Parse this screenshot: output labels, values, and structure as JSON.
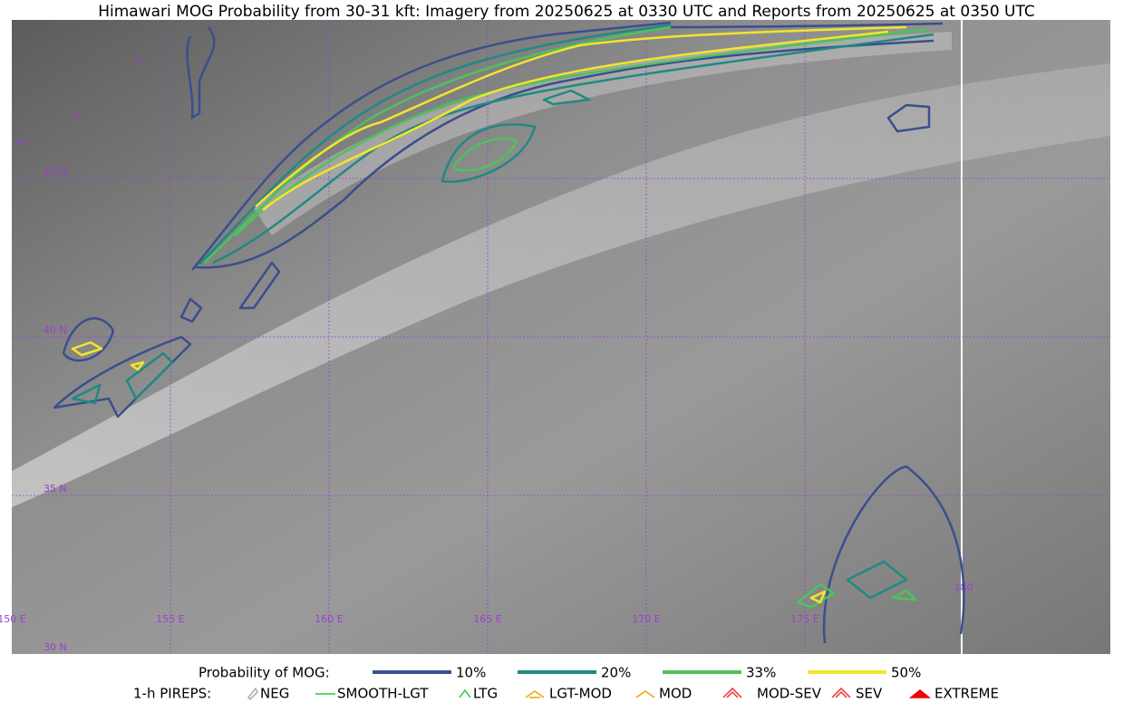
{
  "title": "Himawari MOG Probability from 30-31 kft: Imagery from 20250625 at 0330 UTC and Reports from 20250625 at 0350 UTC",
  "map": {
    "lat_labels": [
      "45 N",
      "40 N",
      "35 N",
      "30 N"
    ],
    "lon_labels": [
      "150 E",
      "155 E",
      "160 E",
      "165 E",
      "170 E",
      "175 E",
      "180"
    ]
  },
  "legend": {
    "probability": {
      "title": "Probability of MOG:",
      "items": [
        {
          "label": "10%",
          "color": "#3b4e8e"
        },
        {
          "label": "20%",
          "color": "#1f8a82"
        },
        {
          "label": "33%",
          "color": "#4dc25e"
        },
        {
          "label": "50%",
          "color": "#f3e52b"
        }
      ]
    },
    "pireps": {
      "title": "1-h PIREPS:",
      "items": [
        "NEG",
        "SMOOTH-LGT",
        "LTG",
        "LGT-MOD",
        "MOD",
        "MOD-SEV",
        "SEV",
        "EXTREME"
      ]
    }
  }
}
